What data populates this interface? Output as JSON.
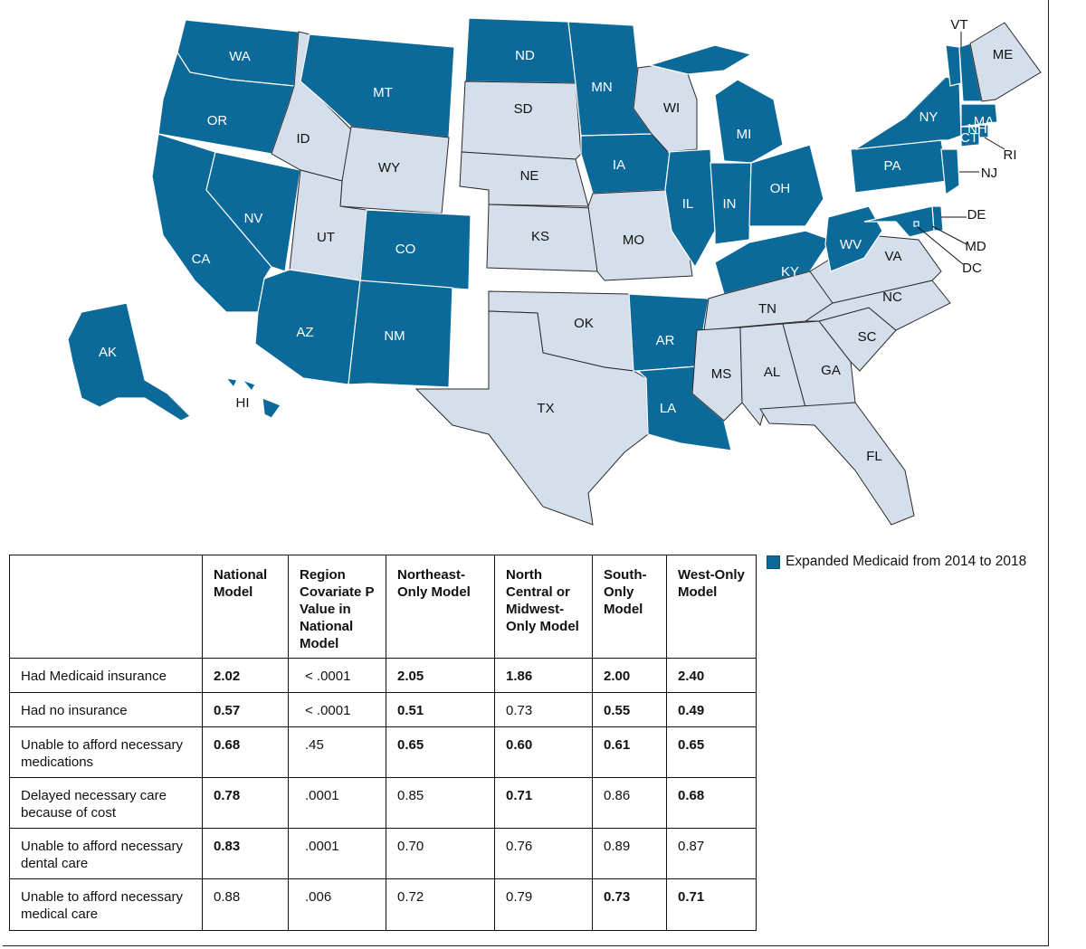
{
  "colors": {
    "expanded": "#0b6a9a",
    "not_expanded": "#d5dfeb"
  },
  "map": {
    "states": [
      {
        "abbr": "WA",
        "expanded": true
      },
      {
        "abbr": "OR",
        "expanded": true
      },
      {
        "abbr": "CA",
        "expanded": true
      },
      {
        "abbr": "NV",
        "expanded": true
      },
      {
        "abbr": "ID",
        "expanded": false
      },
      {
        "abbr": "MT",
        "expanded": true
      },
      {
        "abbr": "WY",
        "expanded": false
      },
      {
        "abbr": "UT",
        "expanded": false
      },
      {
        "abbr": "CO",
        "expanded": true
      },
      {
        "abbr": "AZ",
        "expanded": true
      },
      {
        "abbr": "NM",
        "expanded": true
      },
      {
        "abbr": "ND",
        "expanded": true
      },
      {
        "abbr": "SD",
        "expanded": false
      },
      {
        "abbr": "NE",
        "expanded": false
      },
      {
        "abbr": "KS",
        "expanded": false
      },
      {
        "abbr": "OK",
        "expanded": false
      },
      {
        "abbr": "TX",
        "expanded": false
      },
      {
        "abbr": "MN",
        "expanded": true
      },
      {
        "abbr": "IA",
        "expanded": true
      },
      {
        "abbr": "MO",
        "expanded": false
      },
      {
        "abbr": "AR",
        "expanded": true
      },
      {
        "abbr": "LA",
        "expanded": true
      },
      {
        "abbr": "WI",
        "expanded": false
      },
      {
        "abbr": "IL",
        "expanded": true
      },
      {
        "abbr": "MI",
        "expanded": true
      },
      {
        "abbr": "IN",
        "expanded": true
      },
      {
        "abbr": "OH",
        "expanded": true
      },
      {
        "abbr": "KY",
        "expanded": true
      },
      {
        "abbr": "TN",
        "expanded": false
      },
      {
        "abbr": "MS",
        "expanded": false
      },
      {
        "abbr": "AL",
        "expanded": false
      },
      {
        "abbr": "GA",
        "expanded": false
      },
      {
        "abbr": "FL",
        "expanded": false
      },
      {
        "abbr": "SC",
        "expanded": false
      },
      {
        "abbr": "NC",
        "expanded": false
      },
      {
        "abbr": "VA",
        "expanded": false
      },
      {
        "abbr": "WV",
        "expanded": true
      },
      {
        "abbr": "PA",
        "expanded": true
      },
      {
        "abbr": "NY",
        "expanded": true
      },
      {
        "abbr": "VT",
        "expanded": true
      },
      {
        "abbr": "NH",
        "expanded": true
      },
      {
        "abbr": "ME",
        "expanded": false
      },
      {
        "abbr": "MA",
        "expanded": true
      },
      {
        "abbr": "CT",
        "expanded": true
      },
      {
        "abbr": "RI",
        "expanded": true
      },
      {
        "abbr": "NJ",
        "expanded": true
      },
      {
        "abbr": "DE",
        "expanded": true
      },
      {
        "abbr": "MD",
        "expanded": true
      },
      {
        "abbr": "DC",
        "expanded": true
      },
      {
        "abbr": "AK",
        "expanded": true
      },
      {
        "abbr": "HI",
        "expanded": true
      }
    ]
  },
  "legend": {
    "label": "Expanded Medicaid from 2014 to 2018"
  },
  "table": {
    "headers": [
      "",
      "National Model",
      "Region Covariate P Value in National Model",
      "Northeast-Only Model",
      "North Central or Midwest-Only Model",
      "South-Only Model",
      "West-Only Model"
    ],
    "rows": [
      {
        "label": "Had Medicaid insurance",
        "cells": [
          {
            "v": "2.02",
            "b": true
          },
          {
            "v": "< .0001",
            "b": false
          },
          {
            "v": "2.05",
            "b": true
          },
          {
            "v": "1.86",
            "b": true
          },
          {
            "v": "2.00",
            "b": true
          },
          {
            "v": "2.40",
            "b": true
          }
        ]
      },
      {
        "label": "Had no insurance",
        "cells": [
          {
            "v": "0.57",
            "b": true
          },
          {
            "v": "< .0001",
            "b": false
          },
          {
            "v": "0.51",
            "b": true
          },
          {
            "v": "0.73",
            "b": false
          },
          {
            "v": "0.55",
            "b": true
          },
          {
            "v": "0.49",
            "b": true
          }
        ]
      },
      {
        "label": "Unable to afford necessary medications",
        "cells": [
          {
            "v": "0.68",
            "b": true
          },
          {
            "v": ".45",
            "b": false
          },
          {
            "v": "0.65",
            "b": true
          },
          {
            "v": "0.60",
            "b": true
          },
          {
            "v": "0.61",
            "b": true
          },
          {
            "v": "0.65",
            "b": true
          }
        ]
      },
      {
        "label": "Delayed necessary care because of cost",
        "cells": [
          {
            "v": "0.78",
            "b": true
          },
          {
            "v": ".0001",
            "b": false
          },
          {
            "v": "0.85",
            "b": false
          },
          {
            "v": "0.71",
            "b": true
          },
          {
            "v": "0.86",
            "b": false
          },
          {
            "v": "0.68",
            "b": true
          }
        ]
      },
      {
        "label": "Unable to afford necessary dental care",
        "cells": [
          {
            "v": "0.83",
            "b": true
          },
          {
            "v": ".0001",
            "b": false
          },
          {
            "v": "0.70",
            "b": false
          },
          {
            "v": "0.76",
            "b": false
          },
          {
            "v": "0.89",
            "b": false
          },
          {
            "v": "0.87",
            "b": false
          }
        ]
      },
      {
        "label": "Unable to afford necessary medical care",
        "cells": [
          {
            "v": "0.88",
            "b": false
          },
          {
            "v": ".006",
            "b": false
          },
          {
            "v": "0.72",
            "b": false
          },
          {
            "v": "0.79",
            "b": false
          },
          {
            "v": "0.73",
            "b": true
          },
          {
            "v": "0.71",
            "b": true
          }
        ]
      }
    ]
  }
}
